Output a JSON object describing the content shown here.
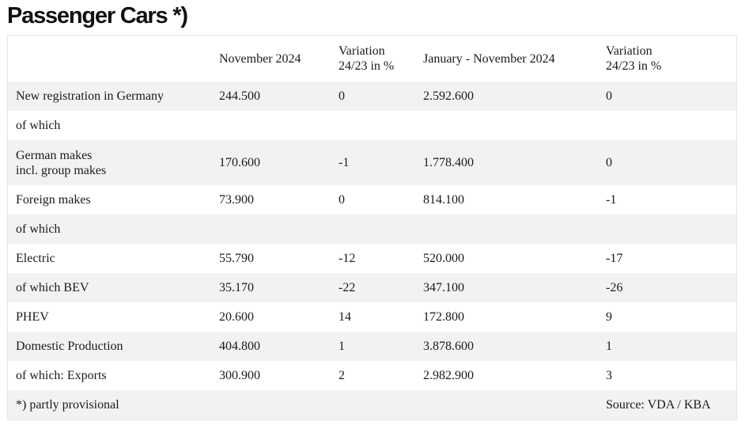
{
  "title": "Passenger Cars *)",
  "table": {
    "headers": [
      "",
      "November 2024",
      "Variation\n24/23 in %",
      "January - November 2024",
      "Variation\n24/23 in %"
    ],
    "rows": [
      [
        "New registration in Germany",
        "244.500",
        "0",
        "2.592.600",
        "0"
      ],
      [
        "of which",
        "",
        "",
        "",
        ""
      ],
      [
        "German makes\nincl. group makes",
        "170.600",
        "-1",
        "1.778.400",
        "0"
      ],
      [
        "Foreign makes",
        "73.900",
        "0",
        "814.100",
        "-1"
      ],
      [
        "of which",
        "",
        "",
        "",
        ""
      ],
      [
        "Electric",
        "55.790",
        "-12",
        "520.000",
        "-17"
      ],
      [
        "of which BEV",
        "35.170",
        "-22",
        "347.100",
        "-26"
      ],
      [
        "PHEV",
        "20.600",
        "14",
        "172.800",
        "9"
      ],
      [
        "Domestic Production",
        "404.800",
        "1",
        "3.878.600",
        "1"
      ],
      [
        "of which: Exports",
        "300.900",
        "2",
        "2.982.900",
        "3"
      ],
      [
        "*) partly provisional",
        "",
        "",
        "",
        "Source: VDA / KBA"
      ]
    ]
  }
}
